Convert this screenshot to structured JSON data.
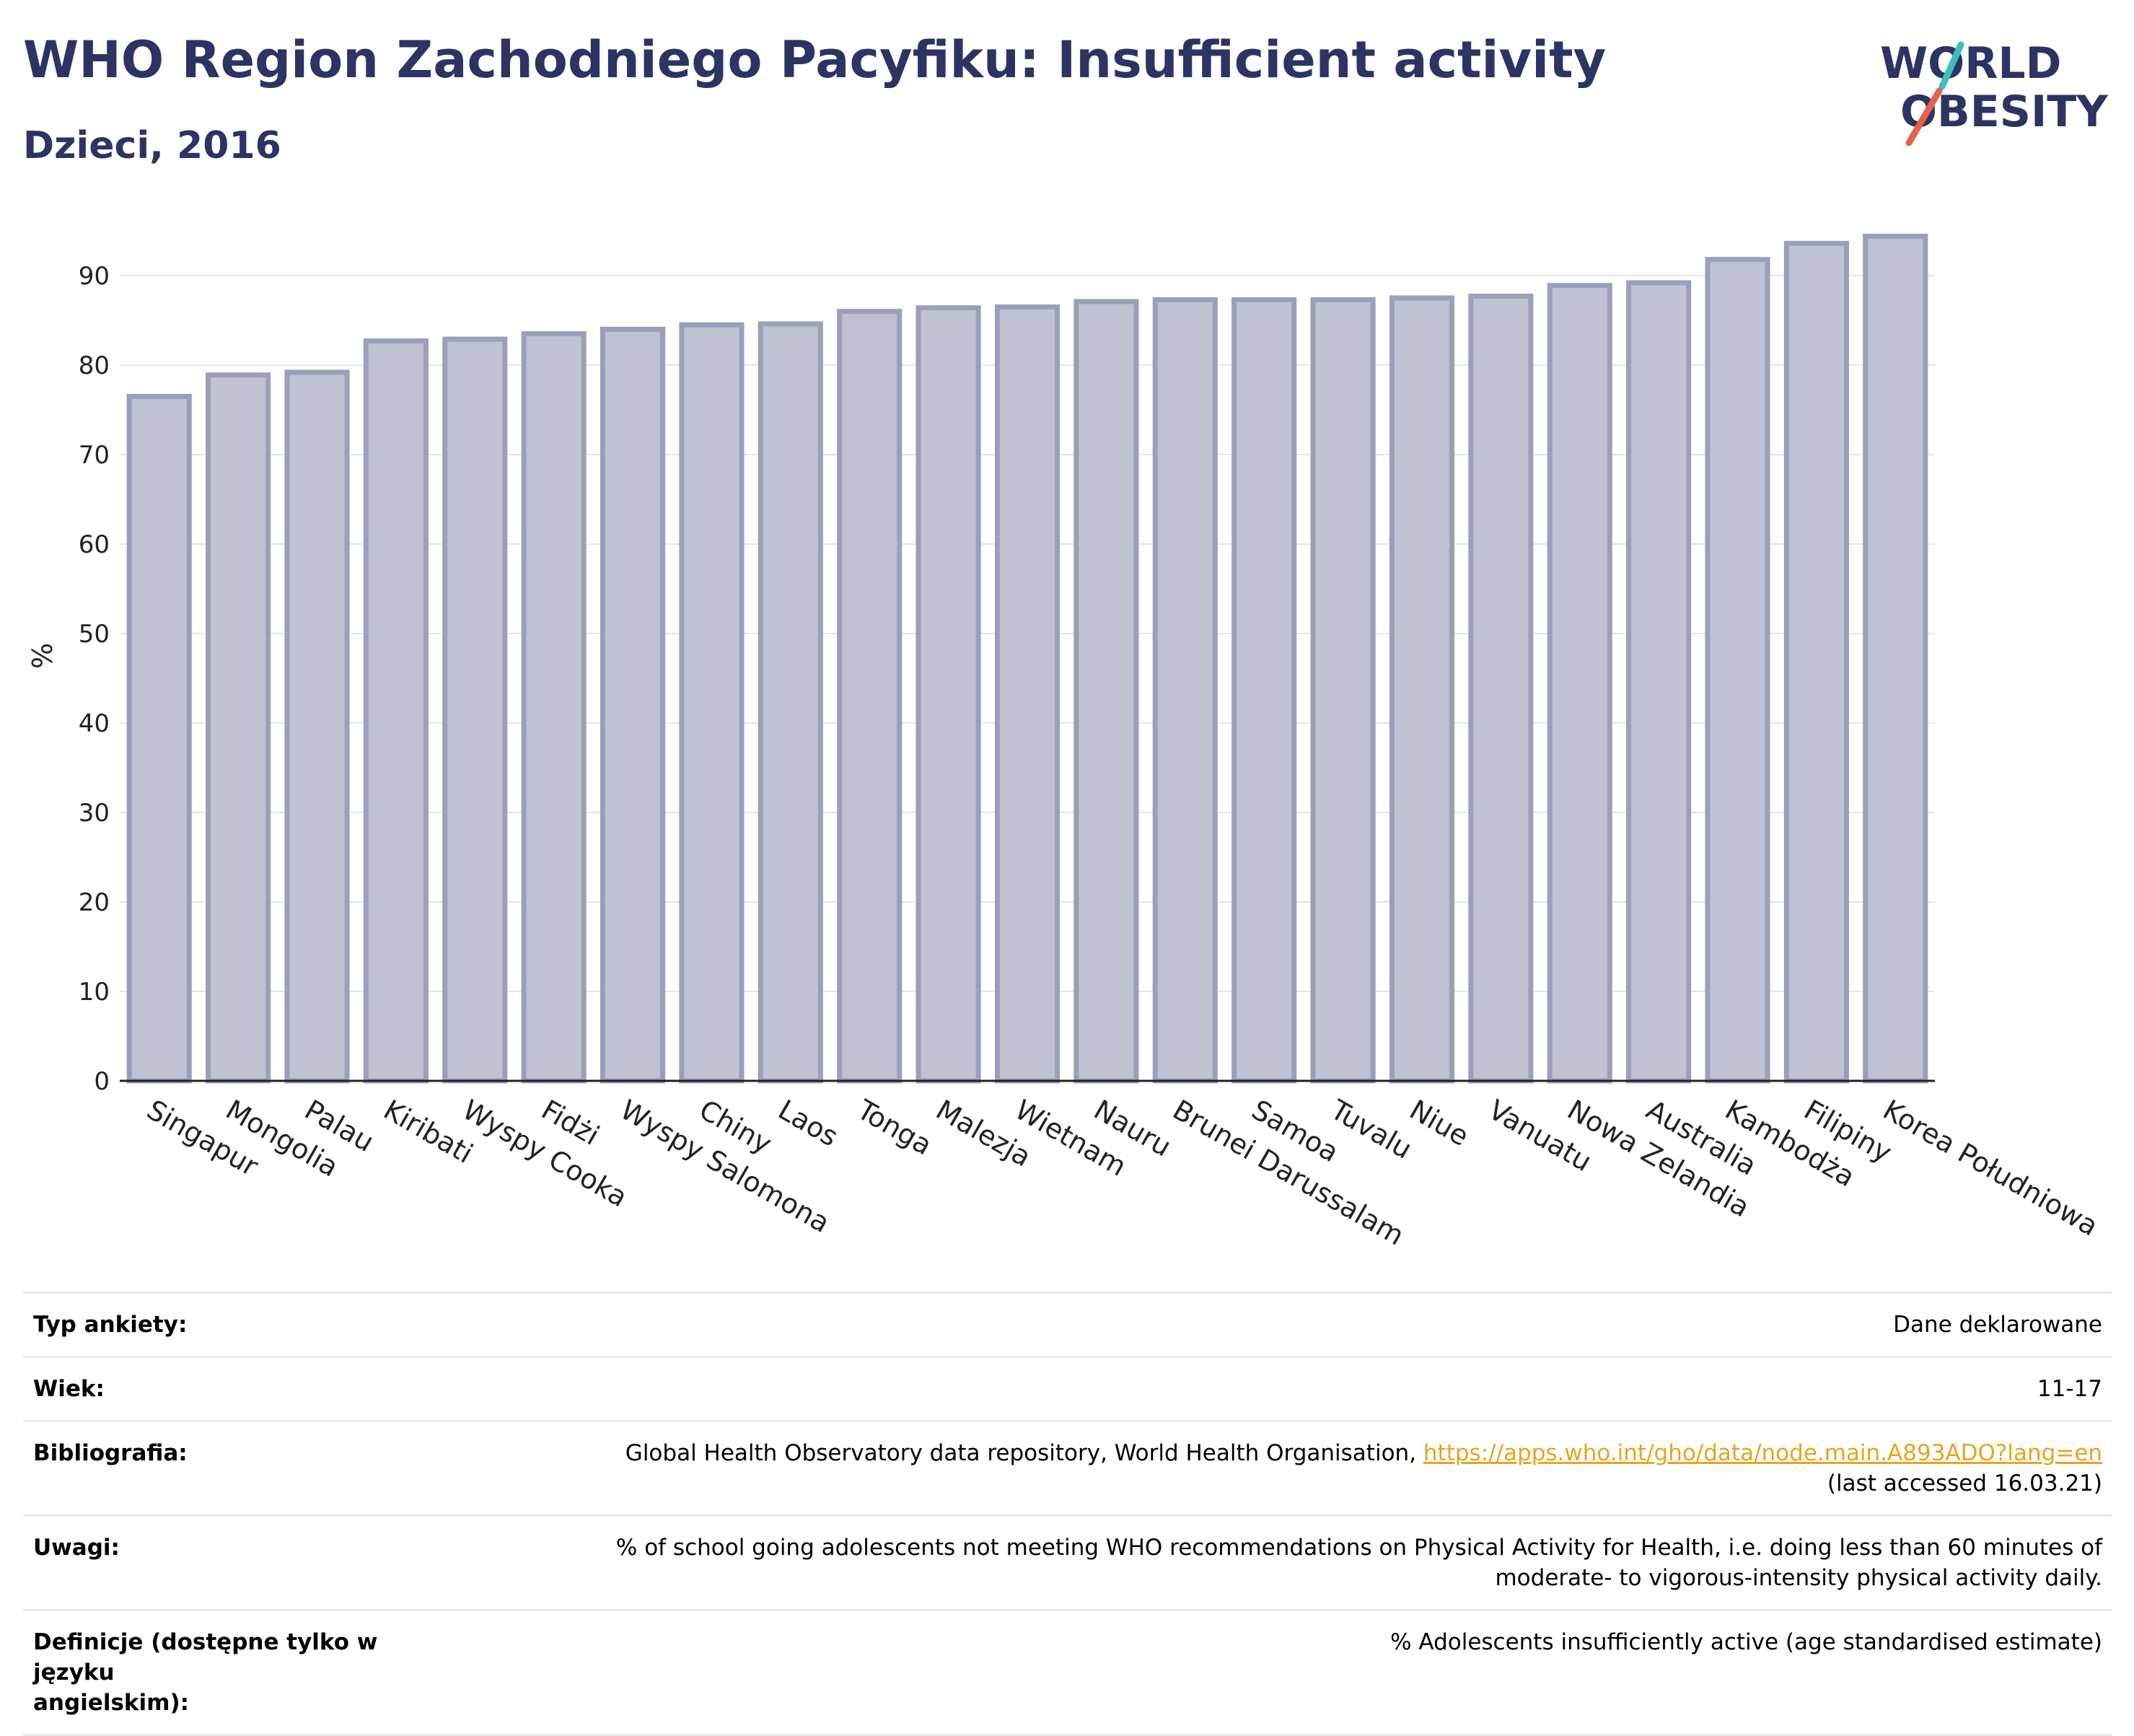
{
  "header": {
    "title": "WHO Region Zachodniego Pacyfiku: Insufficient activity",
    "subtitle": "Dzieci, 2016"
  },
  "logo": {
    "line1": "WORLD",
    "line2": "OBESITY",
    "accent_teal": "#3fbfb5",
    "accent_red": "#e8604c",
    "text_color": "#2b3463"
  },
  "chart_data": {
    "type": "bar",
    "ylabel": "%",
    "ylim": [
      0,
      95
    ],
    "yticks": [
      0,
      10,
      20,
      30,
      40,
      50,
      60,
      70,
      80,
      90
    ],
    "grid": true,
    "bar_fill": "#bfc2d0",
    "bar_stroke": "#9a9fbb",
    "categories": [
      "Singapur",
      "Mongolia",
      "Palau",
      "Kiribati",
      "Wyspy Cooka",
      "Fidżi",
      "Wyspy Salomona",
      "Chiny",
      "Laos",
      "Tonga",
      "Malezja",
      "Wietnam",
      "Nauru",
      "Brunei Darussalam",
      "Samoa",
      "Tuvalu",
      "Niue",
      "Vanuatu",
      "Nowa Zelandia",
      "Australia",
      "Kambodża",
      "Filipiny",
      "Korea Południowa"
    ],
    "values": [
      76.5,
      78.9,
      79.2,
      82.7,
      82.9,
      83.5,
      84.0,
      84.5,
      84.6,
      86.0,
      86.4,
      86.5,
      87.1,
      87.3,
      87.3,
      87.3,
      87.5,
      87.7,
      88.9,
      89.2,
      91.8,
      93.6,
      94.4
    ]
  },
  "meta": {
    "survey_type": {
      "label": "Typ ankiety:",
      "value": "Dane deklarowane"
    },
    "age": {
      "label": "Wiek:",
      "value": "11-17"
    },
    "bibliography": {
      "label": "Bibliografia:",
      "source": "Global Health Observatory data repository, World Health Organisation,",
      "link": "https://apps.who.int/gho/data/node.main.A893ADO?lang=en",
      "accessed": "(last accessed 16.03.21)"
    },
    "notes": {
      "label": "Uwagi:",
      "line1": "% of school going adolescents not meeting WHO recommendations on Physical Activity for Health, i.e. doing less than 60 minutes of",
      "line2": "moderate- to vigorous-intensity physical activity daily."
    },
    "definitions": {
      "label_line1": "Definicje (dostępne tylko w języku",
      "label_line2": "angielskim):",
      "value": "% Adolescents insufficiently active (age standardised estimate)"
    }
  }
}
